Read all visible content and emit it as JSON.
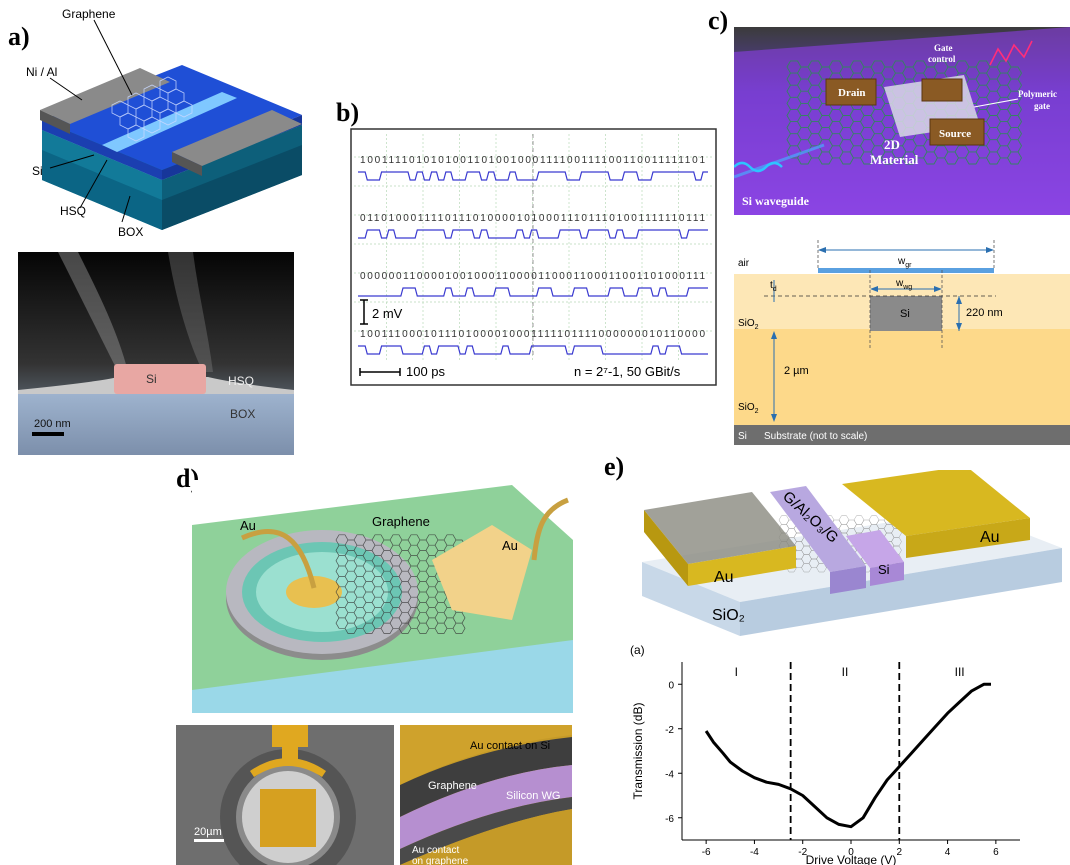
{
  "panel_a": {
    "label": "a)",
    "callouts": {
      "graphene": "Graphene",
      "nial": "Ni / Al",
      "si": "Si",
      "hsq": "HSQ",
      "box": "BOX"
    },
    "sem": {
      "si": "Si",
      "hsq": "HSQ",
      "box": "BOX",
      "scale": "200 nm"
    }
  },
  "panel_b": {
    "label": "b)",
    "bitstreams": [
      "1001111010101001101001000111100111100110011111101",
      "0110100011110111010000101000111011101001111110111",
      "0000001100001001000110000110001100011001101000111",
      "1001110001011101000010001111101111000000010110000"
    ],
    "scale_v": "2 mV",
    "scale_t": "100 ps",
    "spec": "n = 2⁷-1, 50 GBit/s"
  },
  "panel_c": {
    "label": "c)",
    "top": {
      "drain": "Drain",
      "gate1": "Gate",
      "gate2": "control",
      "source": "Source",
      "poly1": "Polymeric",
      "poly2": "gate",
      "mat1": "2D",
      "mat2": "Material",
      "wg": "Si waveguide"
    },
    "bottom": {
      "air": "air",
      "td": "t",
      "td_sub": "d",
      "wgr": "w",
      "wgr_sub": "gr",
      "wwg": "w",
      "wwg_sub": "wg",
      "si": "Si",
      "h220": "220 nm",
      "sio2a": "SiO",
      "sio2b": "SiO",
      "sub2": "2",
      "h2um": "2 µm",
      "sib": "Si",
      "substrate": "Substrate (not to scale)"
    }
  },
  "panel_d": {
    "label": "d)",
    "top": {
      "au1": "Au",
      "graphene": "Graphene",
      "au2": "Au"
    },
    "bl": {
      "scale": "20µm"
    },
    "br": {
      "au_si": "Au contact on Si",
      "graphene": "Graphene",
      "siwg": "Silicon WG",
      "au_g1": "Au contact",
      "au_g2": "on graphene"
    }
  },
  "panel_e": {
    "label": "e)",
    "device": {
      "gaog": "G/Al₂O₃/G",
      "au_left": "Au",
      "au_right": "Au",
      "si": "Si",
      "sio2": "SiO₂"
    }
  },
  "chart_data": {
    "type": "line",
    "title": "(a)",
    "xlabel": "Drive Voltage (V)",
    "ylabel": "Transmission (dB)",
    "xlim": [
      -7,
      7
    ],
    "ylim": [
      -7,
      1
    ],
    "xticks": [
      -6,
      -4,
      -2,
      0,
      2,
      4,
      6
    ],
    "yticks": [
      0,
      -2,
      -4,
      -6
    ],
    "regions": [
      "I",
      "II",
      "III"
    ],
    "region_bounds": [
      -2.5,
      2
    ],
    "series": [
      {
        "x": [
          -6,
          -5.7,
          -5.3,
          -5,
          -4.5,
          -4,
          -3.5,
          -3,
          -2.5,
          -2,
          -1.5,
          -1,
          -0.5,
          0,
          0.5,
          1,
          1.5,
          2,
          2.5,
          3,
          3.5,
          4,
          4.5,
          5,
          5.5,
          5.8
        ],
        "y": [
          -2.1,
          -2.6,
          -3.1,
          -3.5,
          -3.9,
          -4.2,
          -4.4,
          -4.5,
          -4.7,
          -5.0,
          -5.5,
          -6.0,
          -6.3,
          -6.4,
          -6.0,
          -5.1,
          -4.3,
          -3.7,
          -3.1,
          -2.5,
          -1.9,
          -1.3,
          -0.8,
          -0.3,
          0.0,
          0.0
        ]
      }
    ]
  }
}
